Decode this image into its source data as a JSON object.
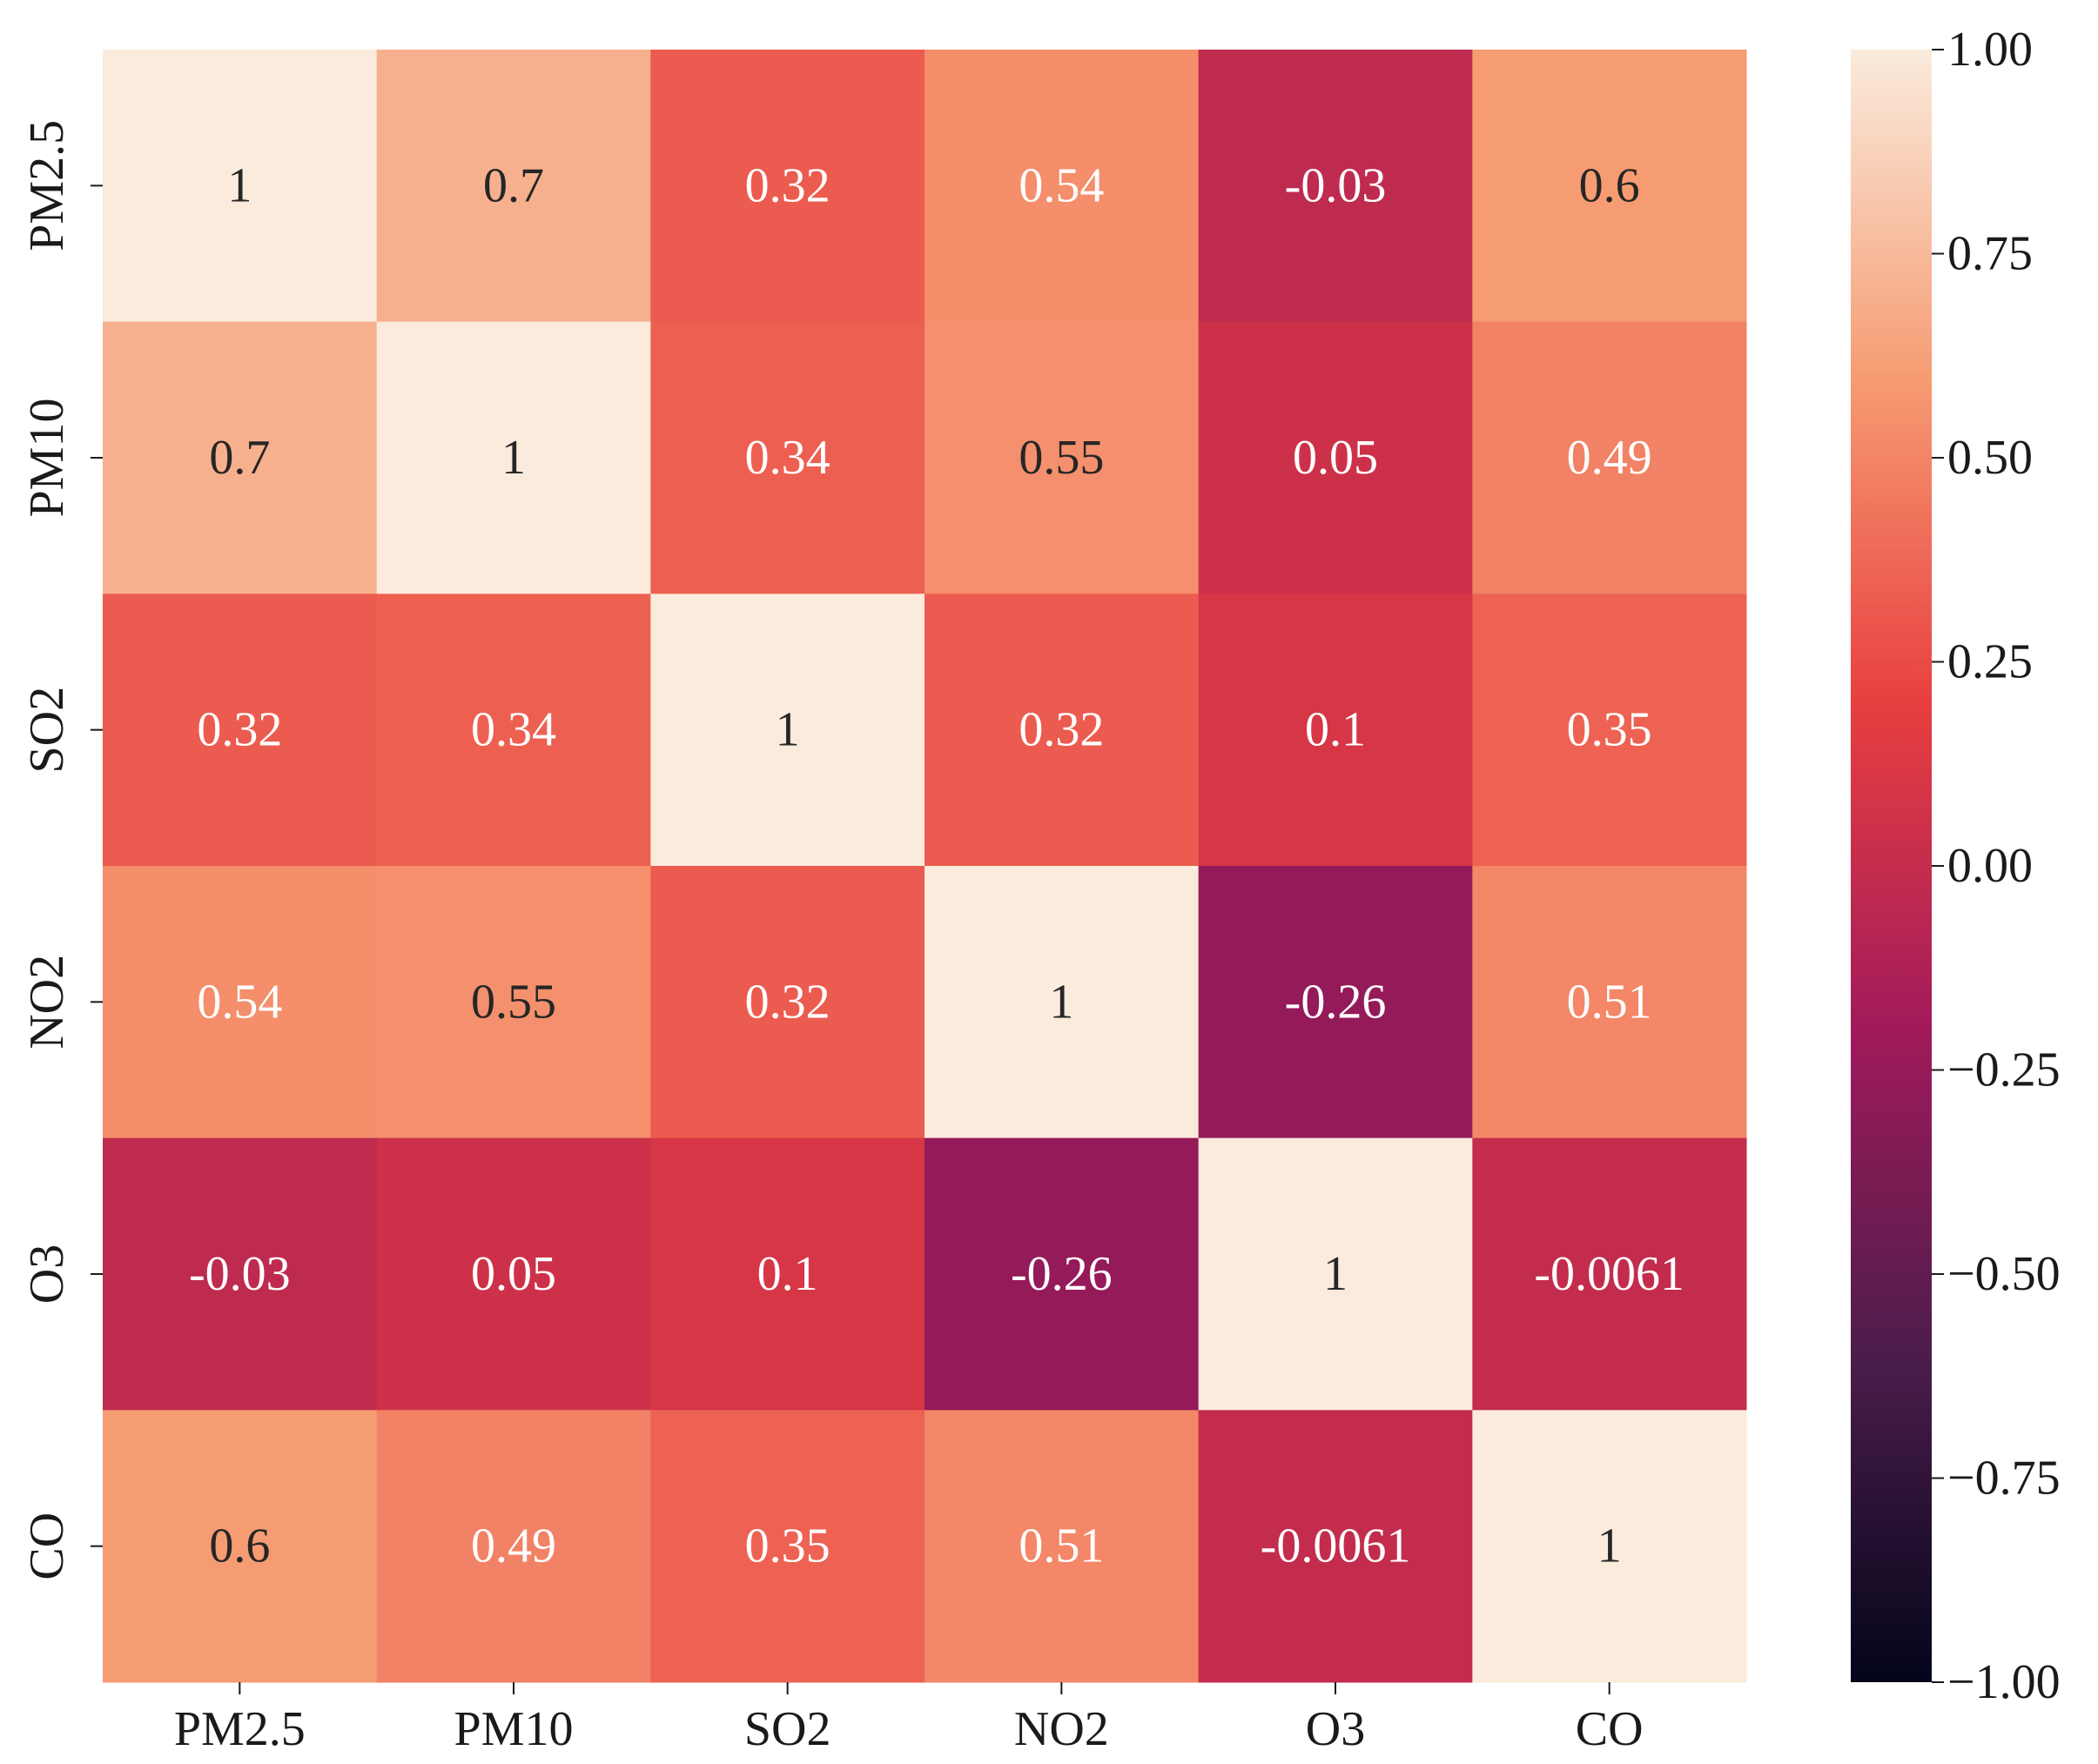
{
  "chart_data": {
    "type": "heatmap",
    "title": "",
    "xlabel": "",
    "ylabel": "",
    "x_categories": [
      "PM2.5",
      "PM10",
      "SO2",
      "NO2",
      "O3",
      "CO"
    ],
    "y_categories": [
      "PM2.5",
      "PM10",
      "SO2",
      "NO2",
      "O3",
      "CO"
    ],
    "values": [
      [
        1,
        0.7,
        0.32,
        0.54,
        -0.03,
        0.6
      ],
      [
        0.7,
        1,
        0.34,
        0.55,
        0.05,
        0.49
      ],
      [
        0.32,
        0.34,
        1,
        0.32,
        0.1,
        0.35
      ],
      [
        0.54,
        0.55,
        0.32,
        1,
        -0.26,
        0.51
      ],
      [
        -0.03,
        0.05,
        0.1,
        -0.26,
        1,
        -0.0061
      ],
      [
        0.6,
        0.49,
        0.35,
        0.51,
        -0.0061,
        1
      ]
    ],
    "annotations": [
      [
        "1",
        "0.7",
        "0.32",
        "0.54",
        "-0.03",
        "0.6"
      ],
      [
        "0.7",
        "1",
        "0.34",
        "0.55",
        "0.05",
        "0.49"
      ],
      [
        "0.32",
        "0.34",
        "1",
        "0.32",
        "0.1",
        "0.35"
      ],
      [
        "0.54",
        "0.55",
        "0.32",
        "1",
        "-0.26",
        "0.51"
      ],
      [
        "-0.03",
        "0.05",
        "0.1",
        "-0.26",
        "1",
        "-0.0061"
      ],
      [
        "0.6",
        "0.49",
        "0.35",
        "0.51",
        "-0.0061",
        "1"
      ]
    ],
    "colorbar": {
      "colormap": "rocket",
      "range": [
        -1.0,
        1.0
      ],
      "ticks": [
        1.0,
        0.75,
        0.5,
        0.25,
        0.0,
        -0.25,
        -0.5,
        -0.75,
        -1.0
      ],
      "tick_labels": [
        "1.00",
        "0.75",
        "0.50",
        "0.25",
        "0.00",
        "−0.25",
        "−0.50",
        "−0.75",
        "−1.00"
      ]
    }
  },
  "colors": {
    "stops": [
      "#03051a",
      "#4c1d4b",
      "#a11a5b",
      "#e83f3f",
      "#f69c73",
      "#faebdd"
    ],
    "dark_text": "#262626",
    "light_text": "#ffffff"
  }
}
